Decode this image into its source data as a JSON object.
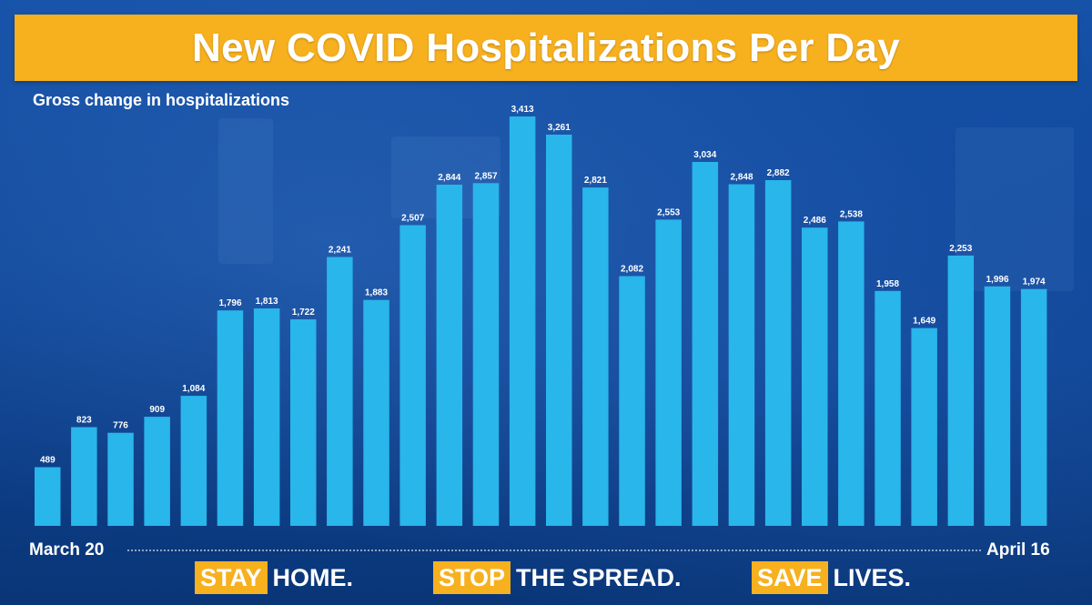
{
  "title": "New COVID Hospitalizations Per Day",
  "subtitle": "Gross change in hospitalizations",
  "colors": {
    "bar": "#29b6ea",
    "banner": "#f7b01e",
    "background": "#0e4597",
    "text": "#ffffff"
  },
  "chart_data": {
    "type": "bar",
    "title": "New COVID Hospitalizations Per Day",
    "ylabel": "Gross change in hospitalizations",
    "xlabel": "",
    "x_start_label": "March 20",
    "x_end_label": "April 16",
    "ylim": [
      0,
      3500
    ],
    "grid": false,
    "values": [
      489,
      823,
      776,
      909,
      1084,
      1796,
      1813,
      1722,
      2241,
      1883,
      2507,
      2844,
      2857,
      3413,
      3261,
      2821,
      2082,
      2553,
      3034,
      2848,
      2882,
      2486,
      2538,
      1958,
      1649,
      2253,
      1996,
      1974
    ],
    "value_labels": [
      "489",
      "823",
      "776",
      "909",
      "1,084",
      "1,796",
      "1,813",
      "1,722",
      "2,241",
      "1,883",
      "2,507",
      "2,844",
      "2,857",
      "3,413",
      "3,261",
      "2,821",
      "2,082",
      "2,553",
      "3,034",
      "2,848",
      "2,882",
      "2,486",
      "2,538",
      "1,958",
      "1,649",
      "2,253",
      "1,996",
      "1,974"
    ]
  },
  "footer": {
    "slogans": [
      {
        "highlight": "STAY",
        "rest": "HOME."
      },
      {
        "highlight": "STOP",
        "rest": "THE SPREAD."
      },
      {
        "highlight": "SAVE",
        "rest": "LIVES."
      }
    ]
  }
}
